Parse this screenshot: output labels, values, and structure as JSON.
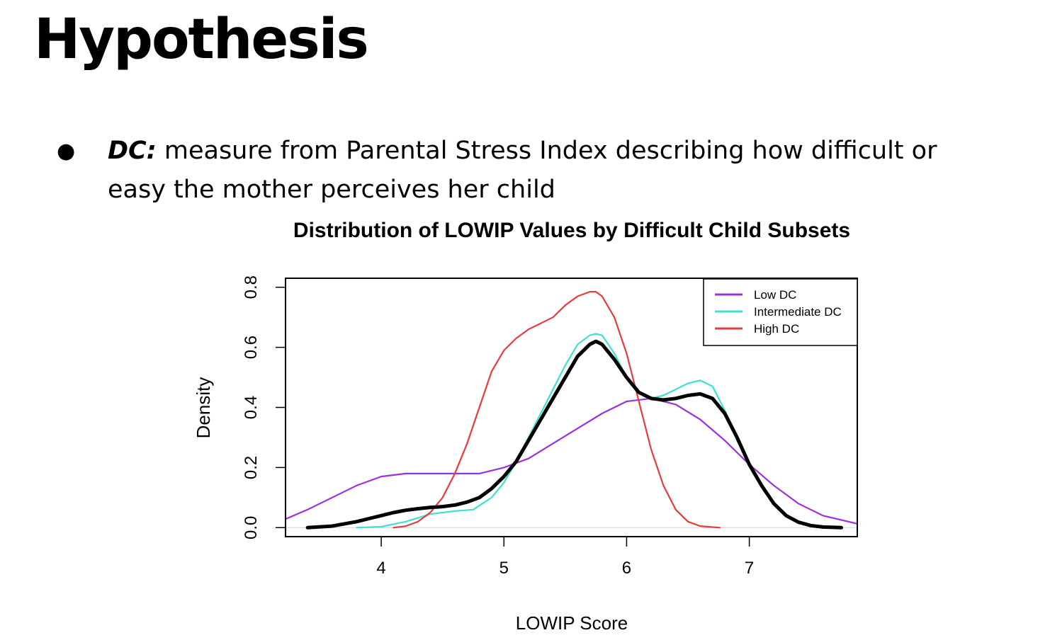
{
  "slide": {
    "title": "Hypothesis",
    "bullet": {
      "term": "DC:",
      "text": " measure from Parental Stress Index describing how difficult or easy the mother perceives her child"
    }
  },
  "chart_data": {
    "type": "line",
    "title": "Distribution of LOWIP Values by Difficult Child Subsets",
    "xlabel": "LOWIP Score",
    "ylabel": "Density",
    "xlim": [
      3.22,
      7.88
    ],
    "ylim": [
      -0.03,
      0.83
    ],
    "xticks": [
      4,
      5,
      6,
      7
    ],
    "yticks": [
      0.0,
      0.2,
      0.4,
      0.6,
      0.8
    ],
    "ytick_labels": [
      "0.0",
      "0.2",
      "0.4",
      "0.6",
      "0.8"
    ],
    "grid": false,
    "zero_line": true,
    "legend": {
      "position": "top-right",
      "entries": [
        "Low DC",
        "Intermediate DC",
        "High DC"
      ]
    },
    "series": [
      {
        "name": "Low DC",
        "color": "#9b30e0",
        "x": [
          3.2,
          3.4,
          3.6,
          3.8,
          4.0,
          4.2,
          4.4,
          4.6,
          4.8,
          5.0,
          5.2,
          5.4,
          5.6,
          5.8,
          6.0,
          6.2,
          6.4,
          6.6,
          6.8,
          7.0,
          7.2,
          7.4,
          7.6,
          7.88
        ],
        "y": [
          0.025,
          0.06,
          0.1,
          0.14,
          0.17,
          0.18,
          0.18,
          0.18,
          0.18,
          0.2,
          0.23,
          0.28,
          0.33,
          0.38,
          0.42,
          0.43,
          0.41,
          0.36,
          0.29,
          0.21,
          0.14,
          0.08,
          0.04,
          0.013
        ]
      },
      {
        "name": "Intermediate DC",
        "color": "#40e0d0",
        "x": [
          3.8,
          4.0,
          4.2,
          4.4,
          4.6,
          4.75,
          4.9,
          5.0,
          5.1,
          5.2,
          5.3,
          5.4,
          5.5,
          5.6,
          5.7,
          5.75,
          5.8,
          5.9,
          6.0,
          6.1,
          6.2,
          6.3,
          6.4,
          6.5,
          6.6,
          6.7,
          6.8,
          6.9,
          7.0,
          7.1,
          7.2,
          7.3,
          7.4,
          7.5,
          7.6,
          7.75
        ],
        "y": [
          0.0,
          0.003,
          0.02,
          0.045,
          0.055,
          0.06,
          0.1,
          0.15,
          0.22,
          0.3,
          0.38,
          0.46,
          0.54,
          0.61,
          0.64,
          0.645,
          0.64,
          0.58,
          0.5,
          0.45,
          0.43,
          0.44,
          0.46,
          0.48,
          0.49,
          0.47,
          0.39,
          0.29,
          0.21,
          0.14,
          0.08,
          0.04,
          0.02,
          0.008,
          0.003,
          0.0
        ]
      },
      {
        "name": "High DC",
        "color": "#e63b3b",
        "x": [
          4.1,
          4.2,
          4.3,
          4.4,
          4.5,
          4.6,
          4.7,
          4.8,
          4.9,
          5.0,
          5.1,
          5.2,
          5.3,
          5.4,
          5.5,
          5.6,
          5.7,
          5.75,
          5.8,
          5.9,
          6.0,
          6.1,
          6.2,
          6.3,
          6.4,
          6.5,
          6.6,
          6.76
        ],
        "y": [
          0.0,
          0.005,
          0.02,
          0.05,
          0.1,
          0.18,
          0.28,
          0.4,
          0.52,
          0.59,
          0.63,
          0.66,
          0.68,
          0.7,
          0.74,
          0.77,
          0.785,
          0.785,
          0.77,
          0.7,
          0.58,
          0.42,
          0.26,
          0.14,
          0.06,
          0.02,
          0.005,
          0.0
        ]
      },
      {
        "name": "",
        "color": "#000000",
        "x": [
          3.4,
          3.6,
          3.8,
          3.9,
          4.0,
          4.1,
          4.2,
          4.3,
          4.4,
          4.5,
          4.6,
          4.7,
          4.8,
          4.9,
          5.0,
          5.1,
          5.2,
          5.3,
          5.4,
          5.5,
          5.6,
          5.7,
          5.75,
          5.8,
          5.9,
          6.0,
          6.1,
          6.2,
          6.3,
          6.4,
          6.5,
          6.6,
          6.7,
          6.8,
          6.9,
          7.0,
          7.1,
          7.2,
          7.3,
          7.4,
          7.5,
          7.6,
          7.75
        ],
        "y": [
          0.0,
          0.005,
          0.02,
          0.03,
          0.04,
          0.05,
          0.058,
          0.063,
          0.067,
          0.07,
          0.075,
          0.085,
          0.1,
          0.13,
          0.17,
          0.22,
          0.29,
          0.36,
          0.43,
          0.5,
          0.57,
          0.61,
          0.62,
          0.61,
          0.56,
          0.5,
          0.45,
          0.43,
          0.425,
          0.43,
          0.44,
          0.445,
          0.43,
          0.38,
          0.3,
          0.21,
          0.14,
          0.08,
          0.04,
          0.018,
          0.007,
          0.002,
          0.0
        ]
      }
    ]
  }
}
